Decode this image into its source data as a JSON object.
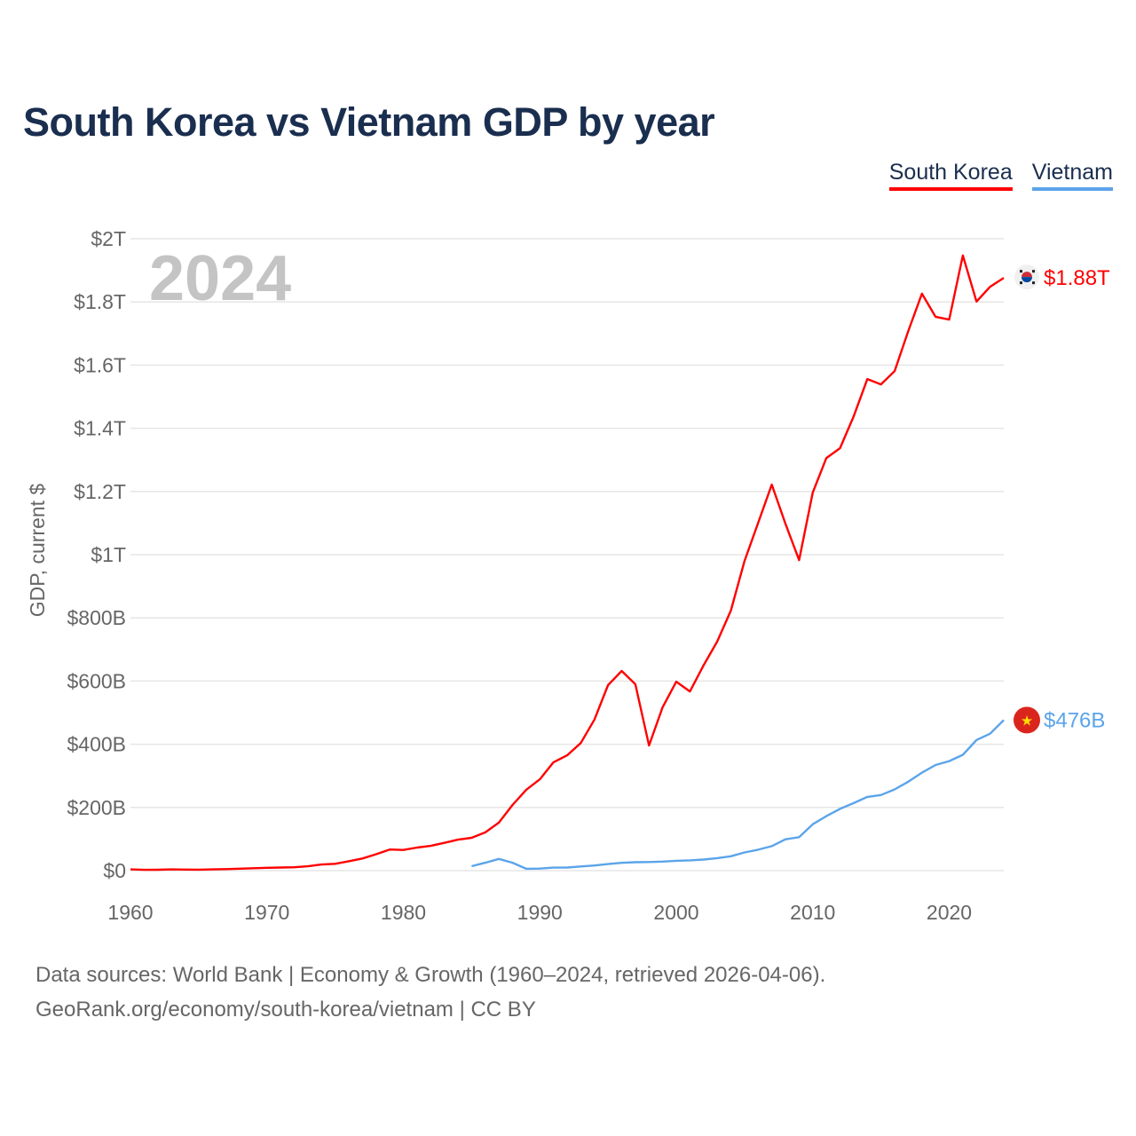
{
  "title": "South Korea vs Vietnam GDP by year",
  "legend": [
    {
      "label": "South Korea",
      "color": "#ff0000"
    },
    {
      "label": "Vietnam",
      "color": "#5ba4ea"
    }
  ],
  "footer": {
    "line1": "Data sources: World Bank | Economy & Growth (1960–2024, retrieved 2026-04-06).",
    "line2": "GeoRank.org/economy/south-korea/vietnam | CC BY"
  },
  "chart_data": {
    "type": "line",
    "title": "South Korea vs Vietnam GDP by year",
    "xlabel": "",
    "ylabel": "GDP, current $",
    "year_watermark": "2024",
    "xlim": [
      1960,
      2024
    ],
    "ylim": [
      0,
      2000
    ],
    "y_unit": "billion USD",
    "grid": true,
    "legend_position": "top-right",
    "x_ticks": [
      1960,
      1970,
      1980,
      1990,
      2000,
      2010,
      2020
    ],
    "x_tick_labels": [
      "1960",
      "1970",
      "1980",
      "1990",
      "2000",
      "2010",
      "2020"
    ],
    "y_ticks": [
      0,
      200,
      400,
      600,
      800,
      1000,
      1200,
      1400,
      1600,
      1800,
      2000
    ],
    "y_tick_labels": [
      "$0",
      "$200B",
      "$400B",
      "$600B",
      "$800B",
      "$1T",
      "$1.2T",
      "$1.4T",
      "$1.6T",
      "$1.8T",
      "$2T"
    ],
    "series": [
      {
        "name": "South Korea",
        "color": "#ff0000",
        "end_label": "$1.88T",
        "flag": "south-korea-flag-icon",
        "start_year": 1960,
        "values": [
          4,
          2.4,
          2.8,
          4,
          3.5,
          3.1,
          3.9,
          4.9,
          6.1,
          7.7,
          9,
          9.9,
          10.8,
          13.9,
          19.5,
          21.7,
          29.8,
          38.4,
          52,
          66.8,
          65.4,
          72.9,
          78.4,
          88,
          98,
          104,
          121,
          152,
          208,
          256,
          289,
          343,
          365,
          404,
          478,
          587,
          632,
          590,
          396,
          517,
          598,
          567,
          650,
          725,
          823,
          980,
          1101,
          1222,
          1098,
          983,
          1197,
          1306,
          1337,
          1438,
          1556,
          1539,
          1581,
          1708,
          1826,
          1753,
          1744,
          1947,
          1801,
          1848,
          1876
        ]
      },
      {
        "name": "Vietnam",
        "color": "#5ba4ea",
        "end_label": "$476B",
        "flag": "vietnam-flag-icon",
        "start_year": 1985,
        "values": [
          14,
          25,
          37,
          25,
          6,
          6.5,
          9.6,
          9.9,
          13.2,
          16.3,
          20.7,
          24.7,
          26.8,
          27.2,
          28.7,
          31.2,
          32.7,
          35.1,
          39.6,
          45.4,
          57.6,
          66.4,
          77.4,
          99.1,
          106,
          147,
          172.6,
          195.6,
          213.7,
          233.5,
          239.3,
          257,
          281.4,
          310.1,
          334.4,
          346.6,
          366.5,
          413.4,
          433.4,
          476.4
        ]
      }
    ]
  }
}
